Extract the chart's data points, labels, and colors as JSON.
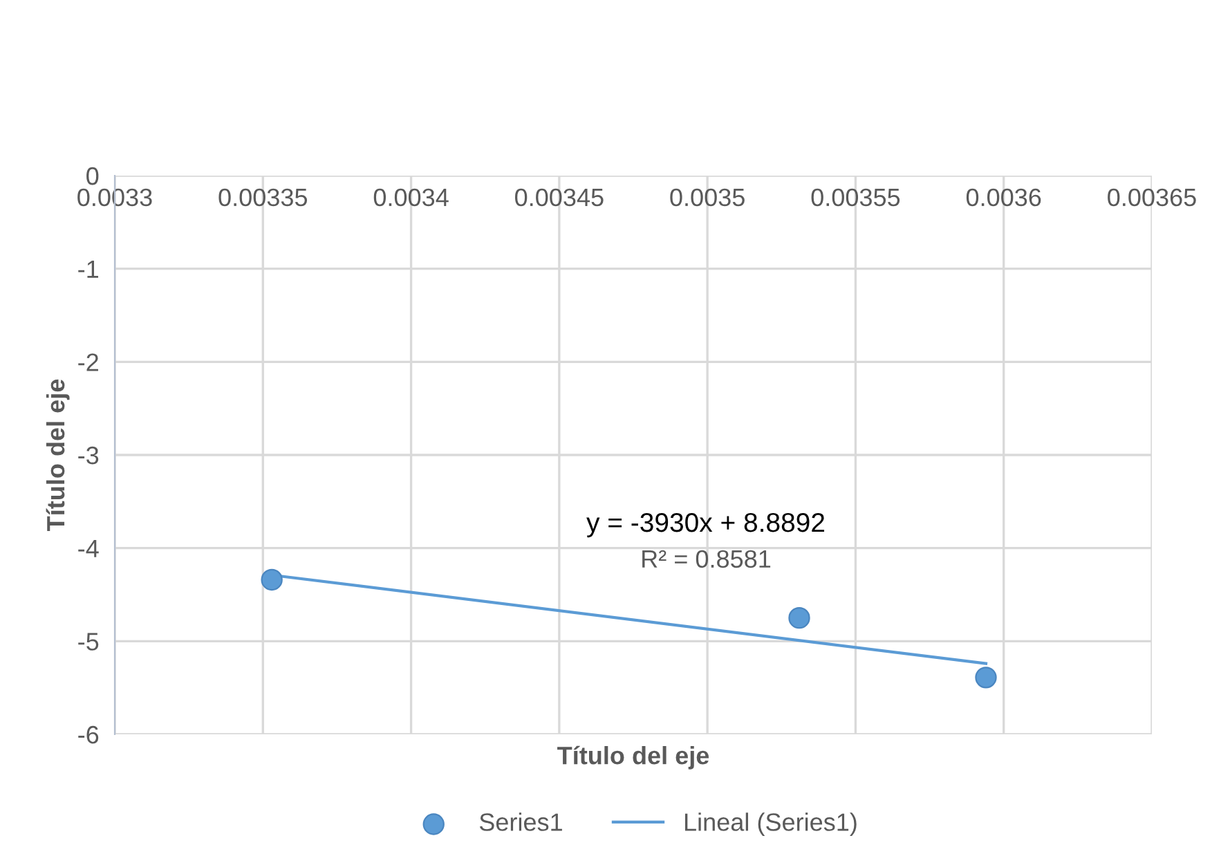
{
  "chart_data": {
    "type": "scatter",
    "xlabel": "Título del eje",
    "ylabel": "Título del eje",
    "xlim": [
      0.0033,
      0.00365
    ],
    "xticks": [
      0.0033,
      0.00335,
      0.0034,
      0.00345,
      0.0035,
      0.00355,
      0.0036,
      0.00365
    ],
    "ylim": [
      -6,
      0
    ],
    "yticks": [
      -6,
      -5,
      -4,
      -3,
      -2,
      -1,
      0
    ],
    "grid": true,
    "legend": "bottom",
    "series": [
      {
        "name": "Series1",
        "marker": "circle",
        "color": "#5b9bd5",
        "x": [
          0.003353,
          0.003531,
          0.003594
        ],
        "values": [
          -4.34,
          -4.75,
          -5.39
        ]
      },
      {
        "name": "Lineal (Series1)",
        "type": "line",
        "color": "#5b9bd5",
        "line_style": "solid",
        "x": [
          0.003353,
          0.003594
        ],
        "values": [
          -4.29,
          -5.24
        ]
      }
    ],
    "annotations": [
      "y = -3930x + 8.8892",
      "R² = 0.8581"
    ]
  }
}
